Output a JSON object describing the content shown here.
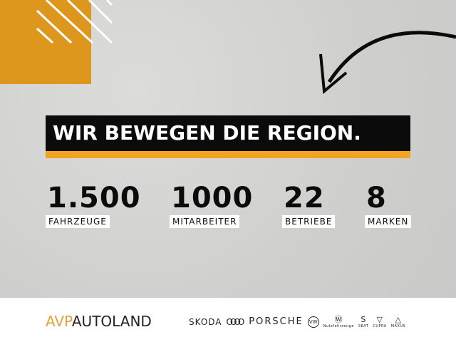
{
  "headline": "WIR BEWEGEN DIE REGION.",
  "stats": [
    {
      "value": "1.500",
      "label": "FAHRZEUGE"
    },
    {
      "value": "1000",
      "label": "MITARBEITER"
    },
    {
      "value": "22",
      "label": "BETRIEBE"
    },
    {
      "value": "8",
      "label": "MARKEN"
    }
  ],
  "logo": {
    "part1": "AVP",
    "part2": "AUTOLAND"
  },
  "brands": {
    "skoda": "SKODA",
    "audi": "OOOO",
    "porsche": "PORSCHE",
    "vw": "VW",
    "vwn": "Nutzfahrzeuge",
    "seat": "SEAT",
    "cupra": "CUPRA",
    "maxus": "MAXUS"
  },
  "colors": {
    "accent": "#de971d",
    "banner": "#0b0b0b"
  }
}
